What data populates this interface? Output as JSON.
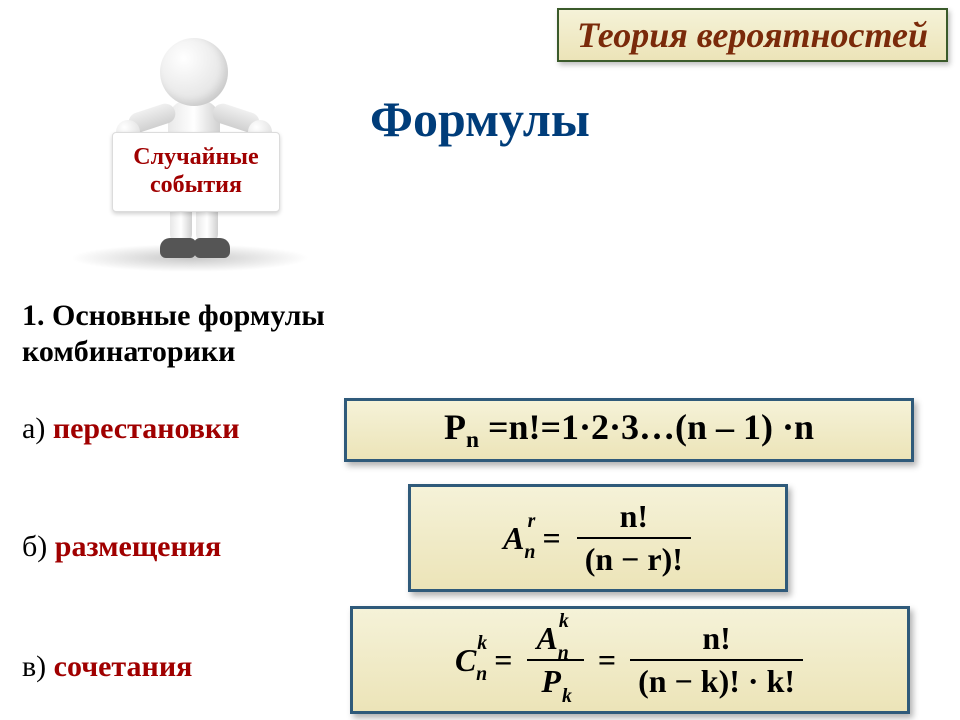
{
  "header": {
    "title": "Теория вероятностей"
  },
  "main_title": "Формулы",
  "sign": {
    "line1": "Случайные",
    "line2": "события"
  },
  "section": {
    "line1": "1. Основные формулы",
    "line2": "комбинаторики"
  },
  "items": {
    "a": {
      "marker": "а) ",
      "label": "перестановки"
    },
    "b": {
      "marker": "б) ",
      "label": "размещения"
    },
    "c": {
      "marker": "в) ",
      "label": "сочетания"
    }
  },
  "formulas": {
    "a_text": "Pn =n!=1·2·3…(n – 1) ·n",
    "b": {
      "lhs_base": "A",
      "lhs_sup": "r",
      "lhs_sub": "n",
      "num": "n!",
      "den": "(n  −  r)!"
    },
    "c": {
      "lhs_base": "C",
      "lhs_sup": "k",
      "lhs_sub": "n",
      "mid_num_base": "A",
      "mid_num_sup": "k",
      "mid_num_sub": "n",
      "mid_den_base": "P",
      "mid_den_sub": "k",
      "rhs_num": "n!",
      "rhs_den": "(n − k)! · k!"
    }
  },
  "style": {
    "box_bg_top": "#f5f2d8",
    "box_bg_bottom": "#ece4b8",
    "box_border": "#2f5a7a",
    "header_border": "#3a5a2a",
    "accent_red": "#a00000",
    "title_blue": "#003d7a",
    "header_text": "#7a2a0a"
  }
}
